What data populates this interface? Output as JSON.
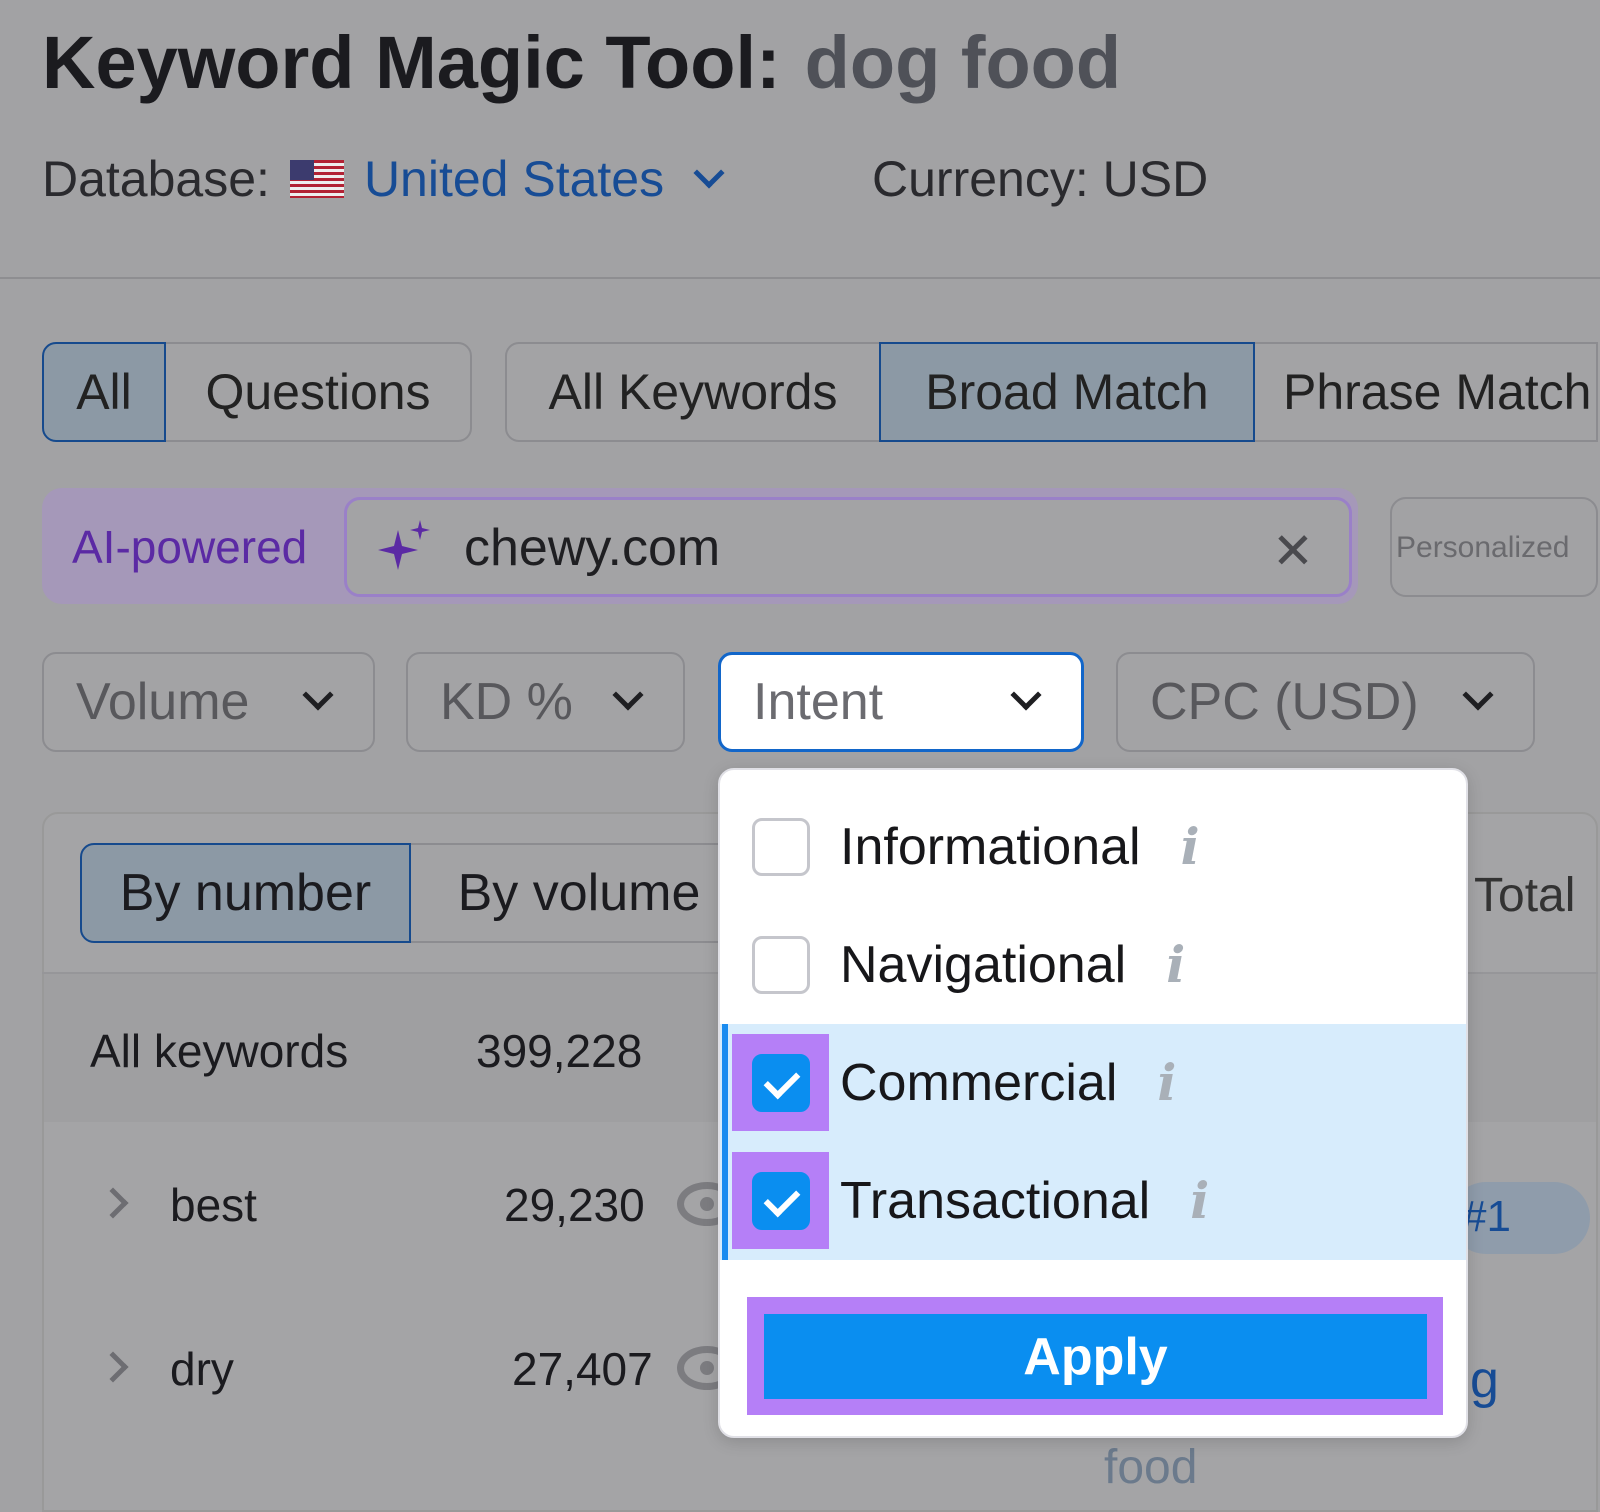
{
  "header": {
    "title": "Keyword Magic Tool:",
    "query": "dog food",
    "database_label": "Database:",
    "country": "United States",
    "currency": "Currency: USD"
  },
  "match_tabs": [
    {
      "label": "All",
      "active": true
    },
    {
      "label": "Questions",
      "active": false
    },
    {
      "label": "All Keywords",
      "active": false
    },
    {
      "label": "Broad Match",
      "active": true
    },
    {
      "label": "Phrase Match",
      "active": false
    }
  ],
  "ai": {
    "label": "AI-powered",
    "value": "chewy.com",
    "persona_label": "Personalized"
  },
  "filters": [
    {
      "label": "Volume"
    },
    {
      "label": "KD %"
    },
    {
      "label": "Intent",
      "open": true
    },
    {
      "label": "CPC (USD)"
    }
  ],
  "group_tabs": [
    {
      "label": "By number",
      "active": true
    },
    {
      "label": "By volume",
      "active": false
    }
  ],
  "total_label": "Total",
  "all_keywords": {
    "label": "All keywords",
    "count": "399,228"
  },
  "groups": [
    {
      "label": "best",
      "count": "29,230"
    },
    {
      "label": "dry",
      "count": "27,407"
    }
  ],
  "right_peek": {
    "badge": "#1",
    "text": "g",
    "text2": "food"
  },
  "intent_dropdown": {
    "options": [
      {
        "label": "Informational",
        "checked": false
      },
      {
        "label": "Navigational",
        "checked": false
      },
      {
        "label": "Commercial",
        "checked": true
      },
      {
        "label": "Transactional",
        "checked": true
      }
    ],
    "apply_label": "Apply"
  },
  "colors": {
    "accent": "#0a8ef0",
    "highlight": "#b57ff7",
    "ai_purple": "#5b2aa4",
    "link": "#174c95"
  }
}
